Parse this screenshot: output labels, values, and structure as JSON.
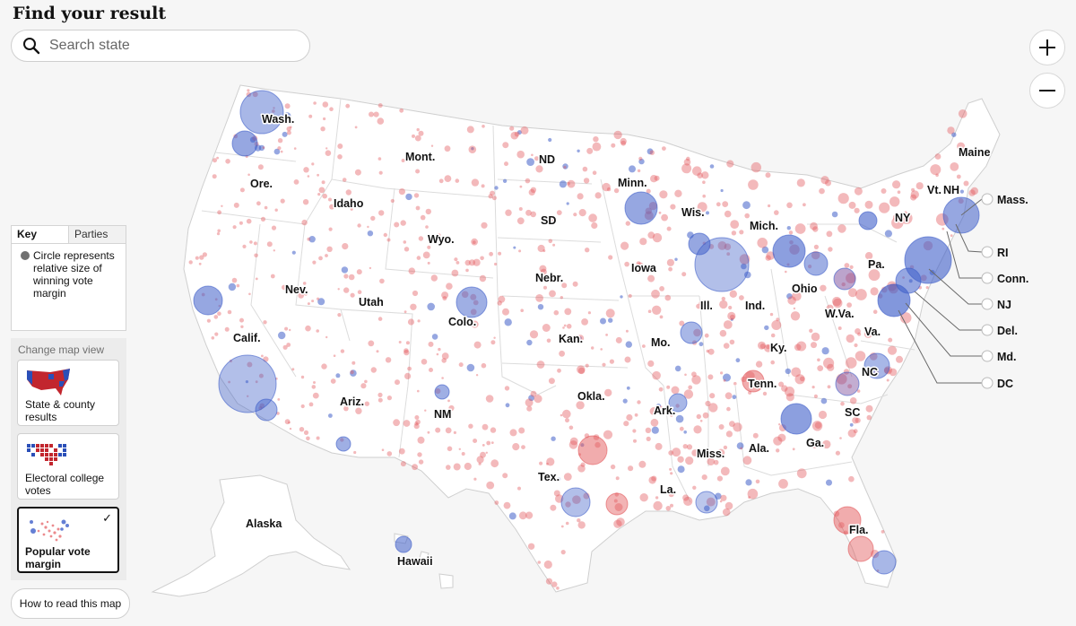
{
  "title": "Find your result",
  "search": {
    "placeholder": "Search state",
    "value": ""
  },
  "zoom": {
    "in_symbol": "+",
    "out_symbol": "−"
  },
  "key": {
    "tabs": [
      "Key",
      "Parties"
    ],
    "active_tab": "Key",
    "description": "Circle represents relative size of winning vote margin"
  },
  "map_view": {
    "heading": "Change map view",
    "options": [
      {
        "label": "State & county results",
        "selected": false
      },
      {
        "label": "Electoral college votes",
        "selected": false
      },
      {
        "label": "Popular vote margin",
        "selected": true
      }
    ]
  },
  "help_button": "How to read this map",
  "colors": {
    "republican": "#e3595c",
    "democrat": "#3f5fc9",
    "land": "#ffffff",
    "border": "#cfcfcf",
    "background": "#f6f6f6"
  },
  "state_labels": [
    "Wash.",
    "Ore.",
    "Calif.",
    "Nev.",
    "Idaho",
    "Mont.",
    "Wyo.",
    "Utah",
    "Ariz.",
    "Colo.",
    "NM",
    "ND",
    "SD",
    "Nebr.",
    "Kan.",
    "Okla.",
    "Tex.",
    "Minn.",
    "Iowa",
    "Mo.",
    "Ark.",
    "La.",
    "Wis.",
    "Ill.",
    "Mich.",
    "Ind.",
    "Ohio",
    "Ky.",
    "Tenn.",
    "Miss.",
    "Ala.",
    "Ga.",
    "Fla.",
    "SC",
    "NC",
    "Va.",
    "W.Va.",
    "Pa.",
    "NY",
    "Vt.",
    "NH",
    "Maine",
    "Alaska",
    "Hawaii"
  ],
  "northeast_labels": [
    "Mass.",
    "RI",
    "Conn.",
    "NJ",
    "Del.",
    "Md.",
    "DC"
  ]
}
